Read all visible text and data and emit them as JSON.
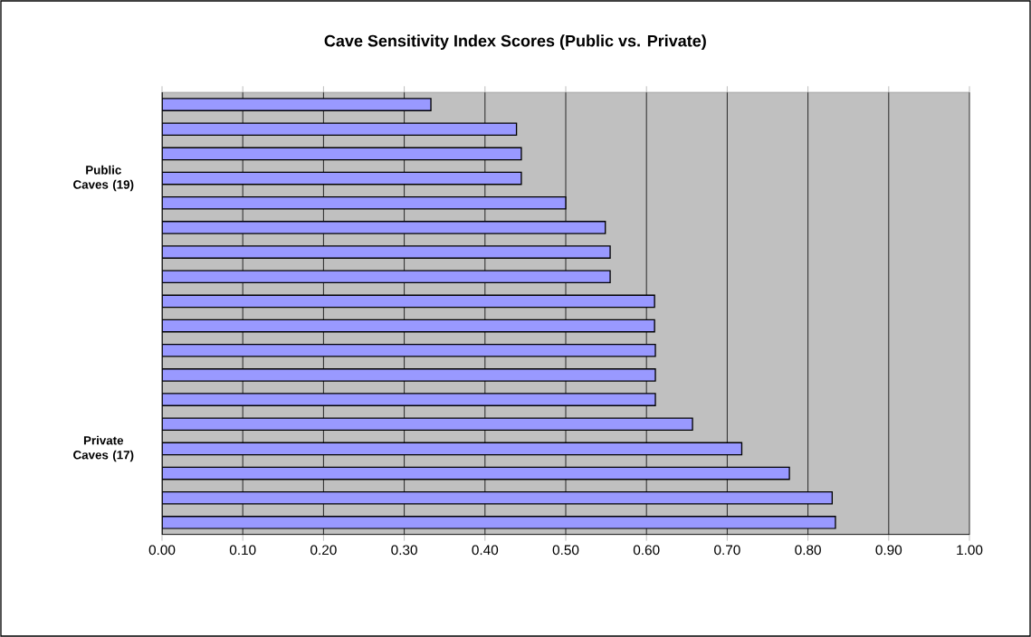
{
  "chart_data": {
    "type": "bar",
    "orientation": "horizontal",
    "title": "Cave Sensitivity Index Scores (Public vs. Private)",
    "categories": [
      null,
      null,
      null,
      "Public Caves (19)",
      null,
      null,
      null,
      null,
      null,
      null,
      null,
      null,
      null,
      null,
      "Private Caves (17)",
      null,
      null,
      null
    ],
    "values": [
      0.333,
      0.439,
      0.445,
      0.445,
      0.5,
      0.549,
      0.555,
      0.555,
      0.61,
      0.61,
      0.611,
      0.611,
      0.611,
      0.657,
      0.718,
      0.777,
      0.83,
      0.834
    ],
    "color": "#9999ff",
    "xlim": [
      0,
      1
    ],
    "xticks": [
      {
        "value": 0,
        "label": "0.00"
      },
      {
        "value": 0.1,
        "label": "0.10"
      },
      {
        "value": 0.2,
        "label": "0.20"
      },
      {
        "value": 0.3,
        "label": "0.30"
      },
      {
        "value": 0.4,
        "label": "0.40"
      },
      {
        "value": 0.5,
        "label": "0.50"
      },
      {
        "value": 0.6,
        "label": "0.60"
      },
      {
        "value": 0.7,
        "label": "0.70"
      },
      {
        "value": 0.8,
        "label": "0.80"
      },
      {
        "value": 0.9,
        "label": "0.90"
      },
      {
        "value": 1,
        "label": "1.00"
      }
    ],
    "grid": "x"
  }
}
